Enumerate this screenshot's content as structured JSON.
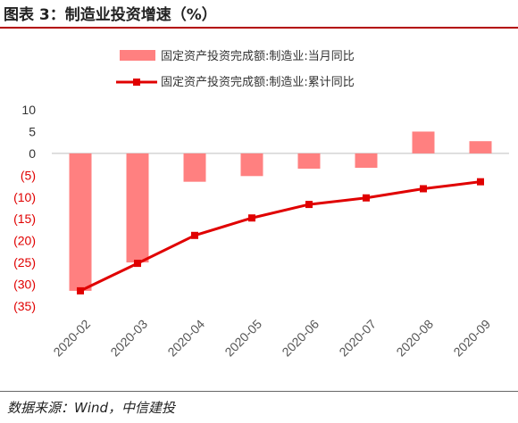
{
  "figure": {
    "title": "图表 3：制造业投资增速（%）",
    "source": "数据来源：Wind，中信建投"
  },
  "chart_data": {
    "type": "bar",
    "categories": [
      "2020-02",
      "2020-03",
      "2020-04",
      "2020-05",
      "2020-06",
      "2020-07",
      "2020-08",
      "2020-09"
    ],
    "series": [
      {
        "name": "固定资产投资完成额:制造业:当月同比",
        "type": "bar",
        "color": "#ff8080",
        "values": [
          -31.5,
          -25.0,
          -6.5,
          -5.2,
          -3.5,
          -3.3,
          5.0,
          2.8
        ]
      },
      {
        "name": "固定资产投资完成额:制造业:累计同比",
        "type": "line",
        "color": "#e00000",
        "values": [
          -31.5,
          -25.2,
          -18.8,
          -14.8,
          -11.7,
          -10.2,
          -8.1,
          -6.5
        ]
      }
    ],
    "yticks": [
      "10",
      "5",
      "0",
      "(5)",
      "(10)",
      "(15)",
      "(20)",
      "(25)",
      "(30)",
      "(35)"
    ],
    "ylim": [
      -35,
      10
    ],
    "grid": false,
    "legend_position": "top"
  }
}
